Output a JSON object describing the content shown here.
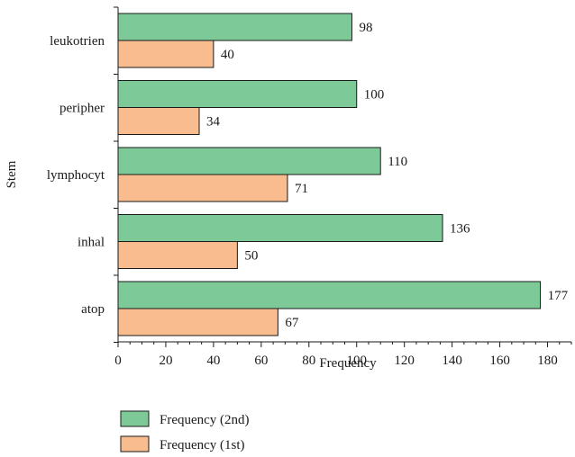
{
  "chart_data": {
    "type": "bar",
    "orientation": "horizontal",
    "categories": [
      "leukotrien",
      "peripher",
      "lymphocyt",
      "inhal",
      "atop"
    ],
    "series": [
      {
        "name": "Frequency (2nd)",
        "values": [
          98,
          100,
          110,
          136,
          177
        ],
        "color": "#7dc997"
      },
      {
        "name": "Frequency (1st)",
        "values": [
          40,
          34,
          71,
          50,
          67
        ],
        "color": "#f8bc8e"
      }
    ],
    "xlabel": "Frequency",
    "ylabel": "Stem",
    "xlim": [
      0,
      190
    ],
    "xticks": [
      "0",
      "20",
      "40",
      "60",
      "80",
      "100",
      "120",
      "140",
      "160",
      "180"
    ],
    "grid": false,
    "legend_position": "bottom-left",
    "edge_color": "#1a1a1a"
  }
}
